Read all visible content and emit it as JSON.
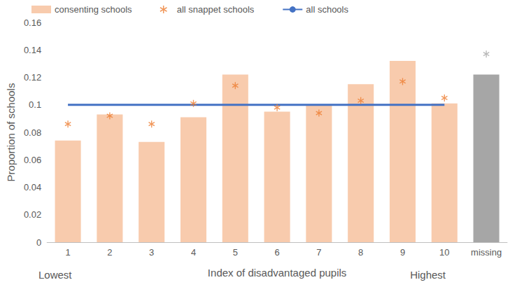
{
  "chart_data": {
    "type": "bar",
    "ylabel": "Proportion of schools",
    "xlabel": "Index of disadvantaged pupils",
    "annotations": [
      "Lowest",
      "Highest"
    ],
    "categories": [
      "1",
      "2",
      "3",
      "4",
      "5",
      "6",
      "7",
      "8",
      "9",
      "10",
      "missing"
    ],
    "series": [
      {
        "name": "consenting schools",
        "type": "bar",
        "values": [
          0.074,
          0.093,
          0.073,
          0.091,
          0.122,
          0.095,
          0.1,
          0.115,
          0.132,
          0.101,
          0.122
        ],
        "colors": [
          "#f8cbad",
          "#f8cbad",
          "#f8cbad",
          "#f8cbad",
          "#f8cbad",
          "#f8cbad",
          "#f8cbad",
          "#f8cbad",
          "#f8cbad",
          "#f8cbad",
          "#a6a6a6"
        ]
      },
      {
        "name": "all snappet schools",
        "type": "scatter",
        "marker": "asterisk",
        "values": [
          0.086,
          0.092,
          0.086,
          0.101,
          0.114,
          0.098,
          0.094,
          0.103,
          0.117,
          0.105,
          0.137
        ],
        "colors": [
          "#ed7d31",
          "#ed7d31",
          "#ed7d31",
          "#ed7d31",
          "#ed7d31",
          "#ed7d31",
          "#ed7d31",
          "#ed7d31",
          "#ed7d31",
          "#ed7d31",
          "#a6a6a6"
        ]
      },
      {
        "name": "all schools",
        "type": "line",
        "color": "#4472c4",
        "values": [
          0.1,
          0.1,
          0.1,
          0.1,
          0.1,
          0.1,
          0.1,
          0.1,
          0.1,
          0.1,
          null
        ]
      }
    ],
    "ylim": [
      0,
      0.16
    ],
    "yticks": [
      0,
      0.02,
      0.04,
      0.06,
      0.08,
      0.1,
      0.12,
      0.14,
      0.16
    ],
    "grid": false,
    "legend": "top"
  }
}
